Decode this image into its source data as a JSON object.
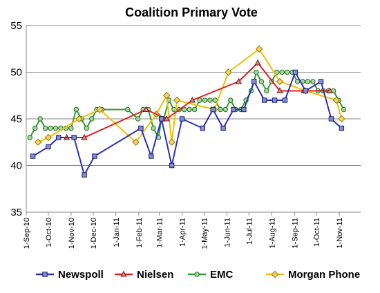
{
  "chart_data": {
    "type": "line",
    "title": "Coalition Primary Vote",
    "xlabel": "",
    "ylabel": "",
    "ylim": [
      35,
      55
    ],
    "yticks": [
      35,
      40,
      45,
      50,
      55
    ],
    "xlim": [
      "2010-09-01",
      "2011-11-30"
    ],
    "xticks": [
      {
        "date": "2010-09-01",
        "label": "1-Sep-10"
      },
      {
        "date": "2010-10-01",
        "label": "1-Oct-10"
      },
      {
        "date": "2010-11-01",
        "label": "1-Nov-10"
      },
      {
        "date": "2010-12-01",
        "label": "1-Dec-10"
      },
      {
        "date": "2011-01-01",
        "label": "1-Jan-11"
      },
      {
        "date": "2011-02-01",
        "label": "1-Feb-11"
      },
      {
        "date": "2011-03-01",
        "label": "1-Mar-11"
      },
      {
        "date": "2011-04-01",
        "label": "1-Apr-11"
      },
      {
        "date": "2011-05-01",
        "label": "1-May-11"
      },
      {
        "date": "2011-06-01",
        "label": "1-Jun-11"
      },
      {
        "date": "2011-07-01",
        "label": "1-Jul-11"
      },
      {
        "date": "2011-08-01",
        "label": "1-Aug-11"
      },
      {
        "date": "2011-09-01",
        "label": "1-Sep-11"
      },
      {
        "date": "2011-10-01",
        "label": "1-Oct-11"
      },
      {
        "date": "2011-11-01",
        "label": "1-Nov-11"
      }
    ],
    "grid": "horizontal",
    "legend_position": "bottom",
    "series": [
      {
        "name": "Newspoll",
        "color": "#2E2EB8",
        "marker": "square",
        "points": [
          {
            "x": "2010-09-10",
            "y": 41
          },
          {
            "x": "2010-10-01",
            "y": 42
          },
          {
            "x": "2010-10-15",
            "y": 43
          },
          {
            "x": "2010-11-05",
            "y": 43
          },
          {
            "x": "2010-11-19",
            "y": 39
          },
          {
            "x": "2010-12-03",
            "y": 41
          },
          {
            "x": "2011-02-04",
            "y": 44
          },
          {
            "x": "2011-02-18",
            "y": 41
          },
          {
            "x": "2011-03-04",
            "y": 45
          },
          {
            "x": "2011-03-18",
            "y": 40
          },
          {
            "x": "2011-04-01",
            "y": 45
          },
          {
            "x": "2011-04-29",
            "y": 44
          },
          {
            "x": "2011-05-13",
            "y": 46
          },
          {
            "x": "2011-05-27",
            "y": 44
          },
          {
            "x": "2011-06-10",
            "y": 46
          },
          {
            "x": "2011-06-24",
            "y": 46
          },
          {
            "x": "2011-07-08",
            "y": 49
          },
          {
            "x": "2011-07-22",
            "y": 47
          },
          {
            "x": "2011-08-05",
            "y": 47
          },
          {
            "x": "2011-08-19",
            "y": 47
          },
          {
            "x": "2011-09-02",
            "y": 50
          },
          {
            "x": "2011-09-16",
            "y": 48
          },
          {
            "x": "2011-10-07",
            "y": 49
          },
          {
            "x": "2011-10-21",
            "y": 45
          },
          {
            "x": "2011-11-04",
            "y": 44
          }
        ]
      },
      {
        "name": "Nielsen",
        "color": "#E02020",
        "marker": "triangle",
        "points": [
          {
            "x": "2010-10-26",
            "y": 43
          },
          {
            "x": "2010-11-19",
            "y": 43
          },
          {
            "x": "2011-02-11",
            "y": 46
          },
          {
            "x": "2011-03-11",
            "y": 45
          },
          {
            "x": "2011-04-15",
            "y": 47
          },
          {
            "x": "2011-06-17",
            "y": 49
          },
          {
            "x": "2011-07-13",
            "y": 51
          },
          {
            "x": "2011-08-12",
            "y": 48
          },
          {
            "x": "2011-09-14",
            "y": 48
          },
          {
            "x": "2011-10-19",
            "y": 48
          }
        ]
      },
      {
        "name": "EMC",
        "color": "#2E9E2E",
        "marker": "circle",
        "points": [
          {
            "x": "2010-09-06",
            "y": 43
          },
          {
            "x": "2010-09-13",
            "y": 44
          },
          {
            "x": "2010-09-20",
            "y": 45
          },
          {
            "x": "2010-09-27",
            "y": 44
          },
          {
            "x": "2010-10-04",
            "y": 44
          },
          {
            "x": "2010-10-11",
            "y": 44
          },
          {
            "x": "2010-10-18",
            "y": 44
          },
          {
            "x": "2010-10-25",
            "y": 44
          },
          {
            "x": "2010-11-01",
            "y": 44
          },
          {
            "x": "2010-11-08",
            "y": 46
          },
          {
            "x": "2010-11-15",
            "y": 45
          },
          {
            "x": "2010-11-22",
            "y": 44
          },
          {
            "x": "2010-11-29",
            "y": 45
          },
          {
            "x": "2010-12-06",
            "y": 46
          },
          {
            "x": "2010-12-13",
            "y": 46
          },
          {
            "x": "2011-01-17",
            "y": 46
          },
          {
            "x": "2011-01-31",
            "y": 45
          },
          {
            "x": "2011-02-07",
            "y": 46
          },
          {
            "x": "2011-02-14",
            "y": 46
          },
          {
            "x": "2011-02-21",
            "y": 44
          },
          {
            "x": "2011-02-28",
            "y": 43
          },
          {
            "x": "2011-03-04",
            "y": 45
          },
          {
            "x": "2011-03-07",
            "y": 45
          },
          {
            "x": "2011-03-14",
            "y": 47
          },
          {
            "x": "2011-03-21",
            "y": 46
          },
          {
            "x": "2011-03-28",
            "y": 46
          },
          {
            "x": "2011-04-04",
            "y": 46
          },
          {
            "x": "2011-04-11",
            "y": 46
          },
          {
            "x": "2011-04-18",
            "y": 46
          },
          {
            "x": "2011-04-25",
            "y": 47
          },
          {
            "x": "2011-05-02",
            "y": 47
          },
          {
            "x": "2011-05-09",
            "y": 47
          },
          {
            "x": "2011-05-16",
            "y": 47
          },
          {
            "x": "2011-05-23",
            "y": 46
          },
          {
            "x": "2011-05-30",
            "y": 46
          },
          {
            "x": "2011-06-06",
            "y": 47
          },
          {
            "x": "2011-06-13",
            "y": 46
          },
          {
            "x": "2011-06-20",
            "y": 46
          },
          {
            "x": "2011-06-27",
            "y": 47
          },
          {
            "x": "2011-07-04",
            "y": 48
          },
          {
            "x": "2011-07-08",
            "y": 49
          },
          {
            "x": "2011-07-11",
            "y": 50
          },
          {
            "x": "2011-07-18",
            "y": 49
          },
          {
            "x": "2011-07-25",
            "y": 48
          },
          {
            "x": "2011-08-01",
            "y": 49
          },
          {
            "x": "2011-08-08",
            "y": 50
          },
          {
            "x": "2011-08-15",
            "y": 50
          },
          {
            "x": "2011-08-22",
            "y": 50
          },
          {
            "x": "2011-08-29",
            "y": 50
          },
          {
            "x": "2011-09-05",
            "y": 49
          },
          {
            "x": "2011-09-12",
            "y": 49
          },
          {
            "x": "2011-09-19",
            "y": 49
          },
          {
            "x": "2011-09-26",
            "y": 49
          },
          {
            "x": "2011-10-03",
            "y": 48
          },
          {
            "x": "2011-10-10",
            "y": 48
          },
          {
            "x": "2011-10-17",
            "y": 48
          },
          {
            "x": "2011-10-24",
            "y": 48
          },
          {
            "x": "2011-10-31",
            "y": 47
          },
          {
            "x": "2011-11-07",
            "y": 46
          }
        ]
      },
      {
        "name": "Morgan Phone",
        "color": "#F0C000",
        "marker": "diamond",
        "points": [
          {
            "x": "2010-09-17",
            "y": 42.5
          },
          {
            "x": "2010-10-01",
            "y": 43
          },
          {
            "x": "2010-11-12",
            "y": 45
          },
          {
            "x": "2010-12-10",
            "y": 46
          },
          {
            "x": "2011-01-28",
            "y": 42.5
          },
          {
            "x": "2011-02-25",
            "y": 45.5
          },
          {
            "x": "2011-03-11",
            "y": 47.5
          },
          {
            "x": "2011-03-18",
            "y": 42.5
          },
          {
            "x": "2011-03-25",
            "y": 47
          },
          {
            "x": "2011-05-15",
            "y": 46
          },
          {
            "x": "2011-06-03",
            "y": 50
          },
          {
            "x": "2011-07-15",
            "y": 52.5
          },
          {
            "x": "2011-08-12",
            "y": 49
          },
          {
            "x": "2011-09-16",
            "y": 48
          },
          {
            "x": "2011-10-28",
            "y": 47
          },
          {
            "x": "2011-11-04",
            "y": 45
          }
        ]
      }
    ]
  }
}
